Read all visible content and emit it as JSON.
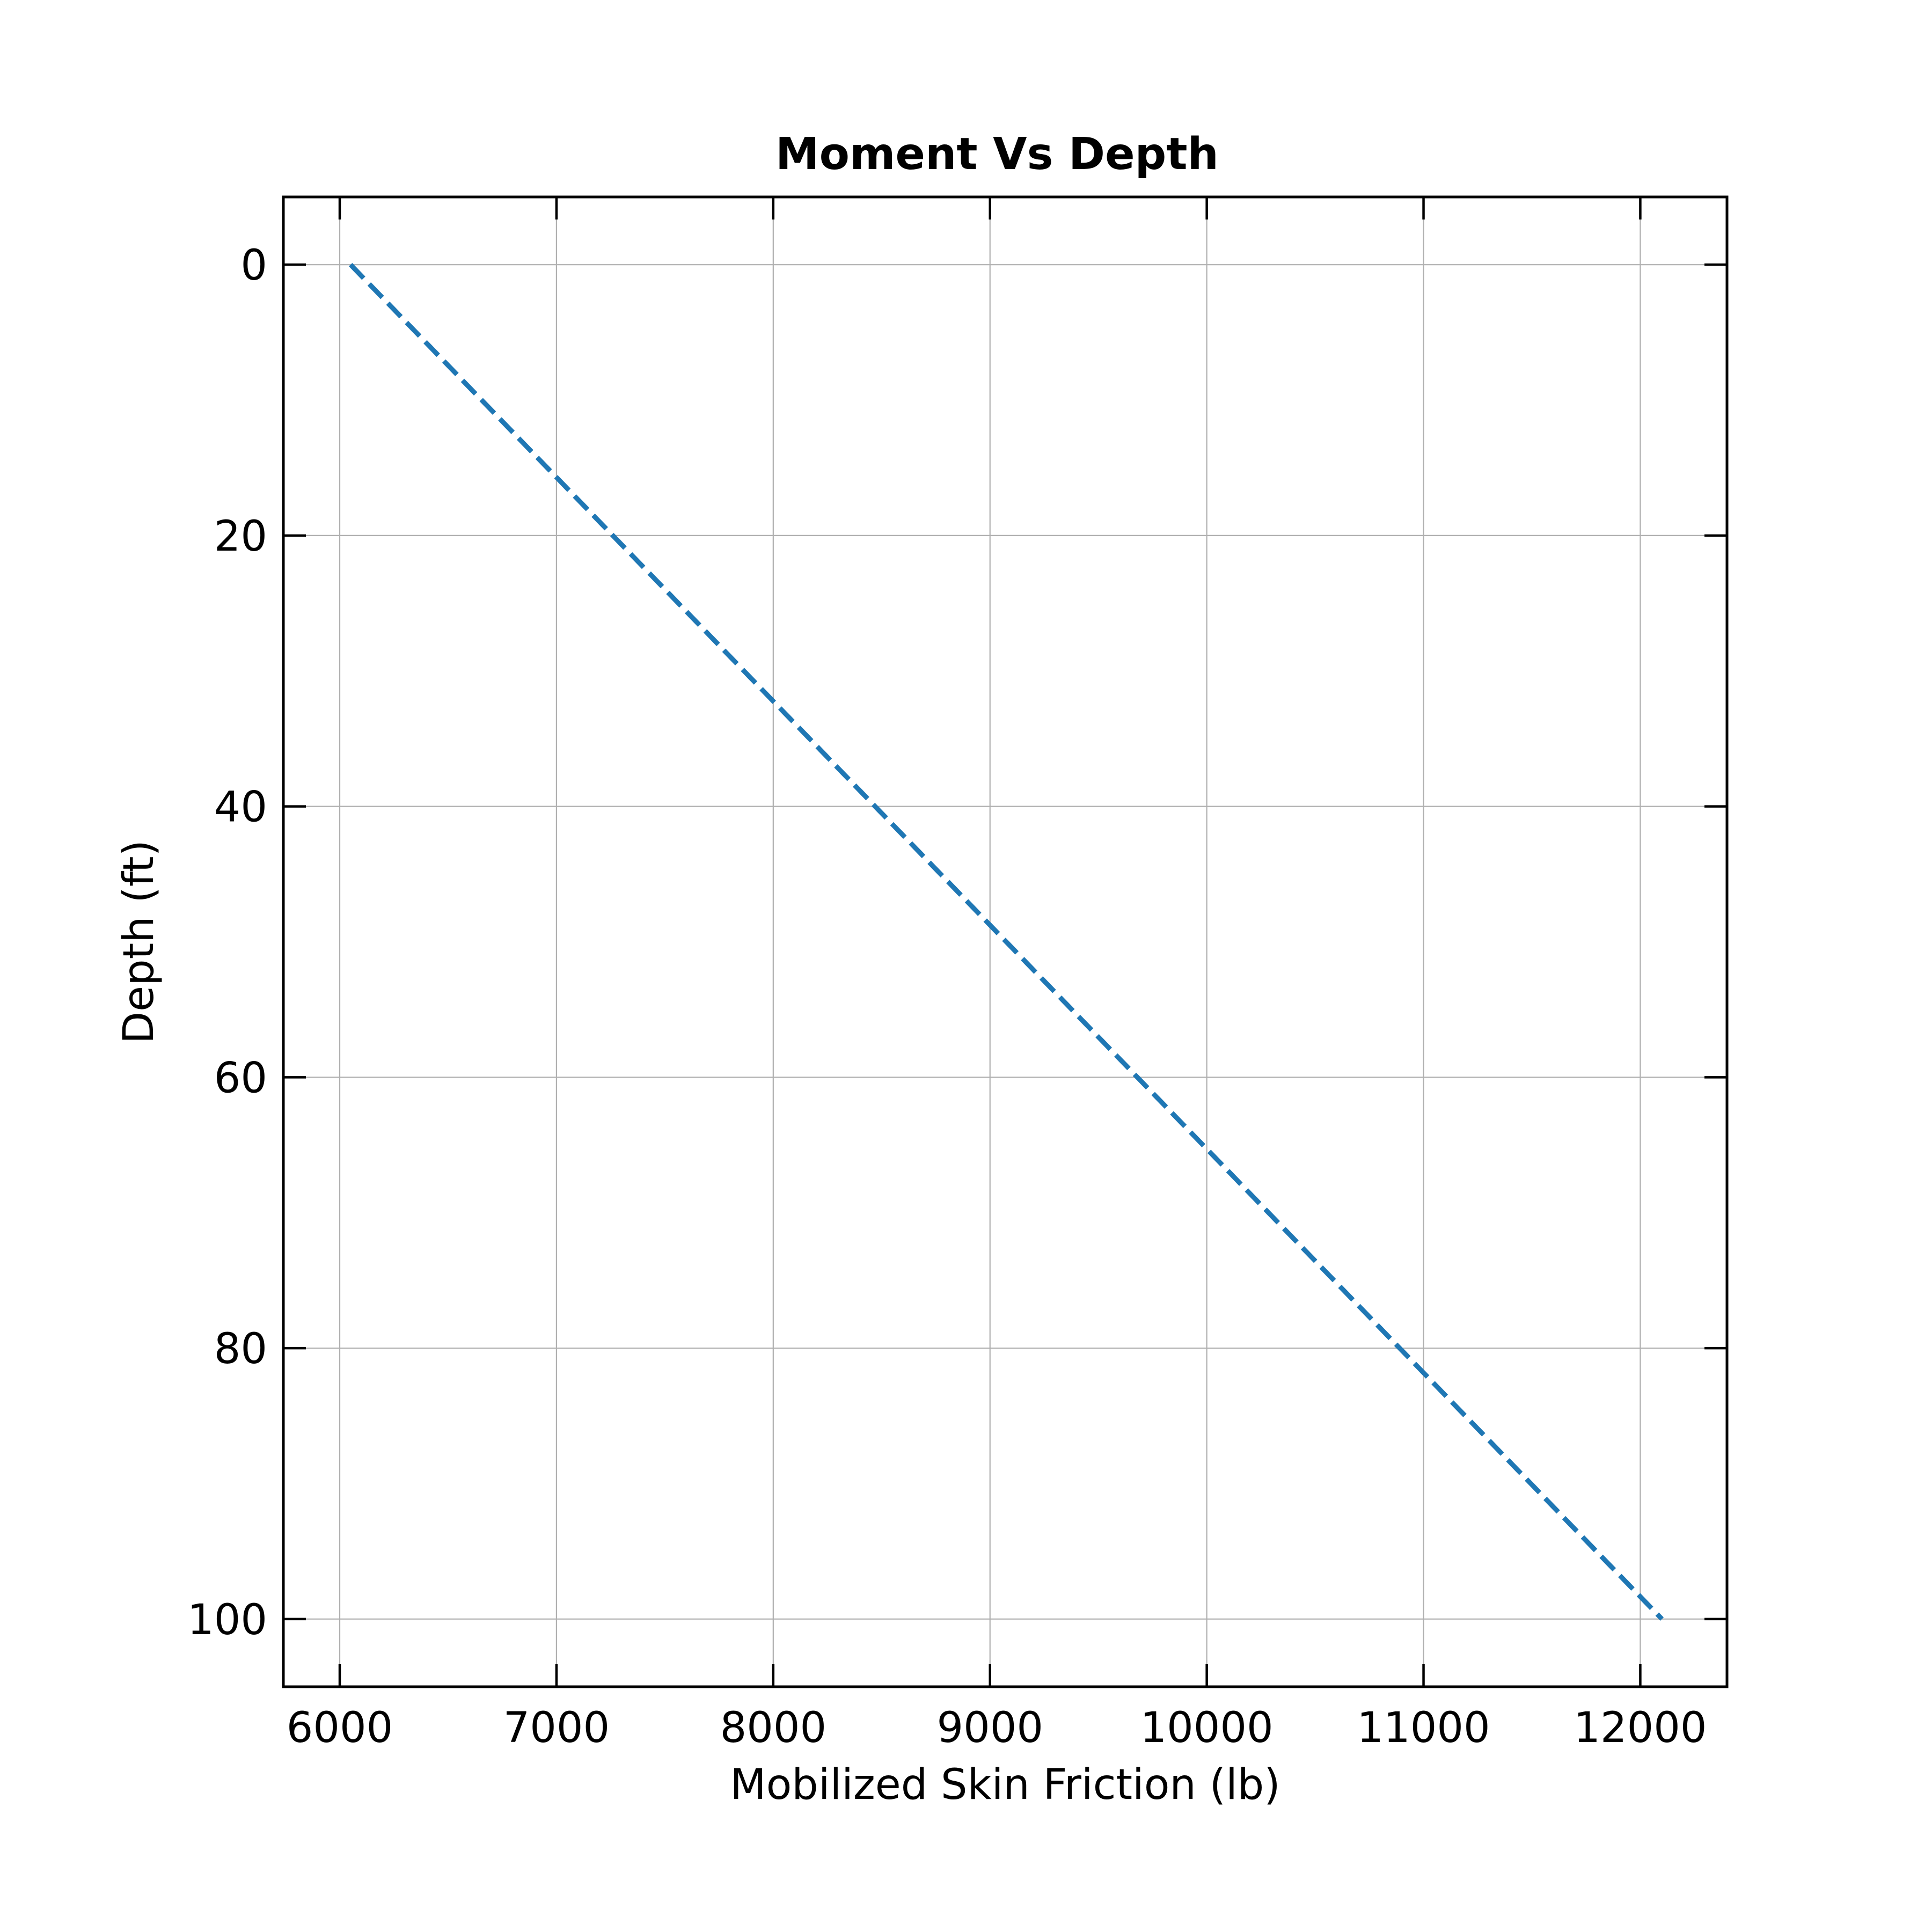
{
  "chart_data": {
    "type": "line",
    "title": "Moment Vs Depth",
    "xlabel": "Mobilized Skin Friction (lb)",
    "ylabel": "Depth (ft)",
    "xlim": [
      5740,
      12400
    ],
    "ylim": [
      105,
      -5
    ],
    "y_inverted": true,
    "grid": true,
    "tick_direction": "in",
    "xticks": [
      6000,
      7000,
      8000,
      9000,
      10000,
      11000,
      12000
    ],
    "xtick_labels": [
      "6000",
      "7000",
      "8000",
      "9000",
      "10000",
      "11000",
      "12000"
    ],
    "yticks": [
      0,
      20,
      40,
      60,
      80,
      100
    ],
    "ytick_labels": [
      "0",
      "20",
      "40",
      "60",
      "80",
      "100"
    ],
    "series": [
      {
        "color": "#1f77b4",
        "line_style": "dashed",
        "x": [
          6050,
          12100
        ],
        "y": [
          0,
          100
        ]
      }
    ]
  }
}
